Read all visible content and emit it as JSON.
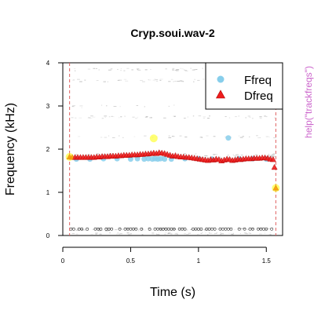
{
  "chart_data": {
    "type": "scatter",
    "title": "Cryp.soui.wav-2",
    "xlabel": "Time (s)",
    "ylabel": "Frequency (kHz)",
    "side_note": "help(\"trackfreqs\")",
    "xlim": [
      0,
      1.62
    ],
    "ylim": [
      0,
      4
    ],
    "x_ticks": [
      0,
      0.5,
      1,
      1.5
    ],
    "x_tick_labels": [
      "0",
      "0.5",
      "1",
      "1.5"
    ],
    "y_ticks": [
      0,
      1,
      2,
      3,
      4
    ],
    "y_tick_labels": [
      "0",
      "1",
      "2",
      "3",
      "4"
    ],
    "selection_bounds": [
      0.05,
      1.57
    ],
    "legend": {
      "position": "top-right",
      "entries": [
        "Ffreq",
        "Dfreq"
      ]
    },
    "colors": {
      "ffreq": "#87ceeb",
      "dfreq": "#ee1c1c",
      "dfreq_stroke": "#b00000",
      "highlight": "#ffff00",
      "bounds": "#e06060",
      "side_note": "#cc66cc",
      "spectro": "#9a9a9a"
    },
    "series": [
      {
        "name": "Ffreq",
        "marker": "circle",
        "points": [
          [
            0.1,
            1.77
          ],
          [
            0.2,
            1.77
          ],
          [
            0.3,
            1.78
          ],
          [
            0.4,
            1.78
          ],
          [
            0.5,
            1.77
          ],
          [
            0.55,
            1.78
          ],
          [
            0.6,
            1.77
          ],
          [
            0.63,
            1.78
          ],
          [
            0.66,
            1.77
          ],
          [
            0.68,
            1.78
          ],
          [
            0.7,
            1.77
          ],
          [
            0.72,
            1.78
          ],
          [
            0.75,
            1.77
          ],
          [
            0.8,
            1.77
          ],
          [
            0.9,
            1.78
          ],
          [
            1.0,
            1.78
          ],
          [
            1.1,
            1.77
          ],
          [
            1.22,
            2.26
          ],
          [
            1.3,
            1.78
          ],
          [
            1.4,
            1.78
          ],
          [
            1.5,
            1.77
          ]
        ]
      },
      {
        "name": "Dfreq",
        "marker": "triangle",
        "points": [
          [
            0.05,
            1.82
          ],
          [
            0.07,
            1.81
          ],
          [
            0.09,
            1.81
          ],
          [
            0.11,
            1.81
          ],
          [
            0.13,
            1.81
          ],
          [
            0.15,
            1.81
          ],
          [
            0.17,
            1.81
          ],
          [
            0.19,
            1.81
          ],
          [
            0.21,
            1.81
          ],
          [
            0.23,
            1.81
          ],
          [
            0.25,
            1.82
          ],
          [
            0.27,
            1.82
          ],
          [
            0.29,
            1.83
          ],
          [
            0.31,
            1.83
          ],
          [
            0.33,
            1.83
          ],
          [
            0.35,
            1.84
          ],
          [
            0.37,
            1.84
          ],
          [
            0.39,
            1.84
          ],
          [
            0.41,
            1.85
          ],
          [
            0.43,
            1.85
          ],
          [
            0.45,
            1.86
          ],
          [
            0.47,
            1.86
          ],
          [
            0.49,
            1.86
          ],
          [
            0.51,
            1.87
          ],
          [
            0.53,
            1.87
          ],
          [
            0.55,
            1.87
          ],
          [
            0.57,
            1.88
          ],
          [
            0.59,
            1.88
          ],
          [
            0.61,
            1.89
          ],
          [
            0.63,
            1.89
          ],
          [
            0.65,
            1.9
          ],
          [
            0.67,
            1.91
          ],
          [
            0.69,
            1.9
          ],
          [
            0.71,
            1.92
          ],
          [
            0.73,
            1.91
          ],
          [
            0.75,
            1.9
          ],
          [
            0.77,
            1.88
          ],
          [
            0.79,
            1.86
          ],
          [
            0.81,
            1.84
          ],
          [
            0.83,
            1.85
          ],
          [
            0.85,
            1.83
          ],
          [
            0.87,
            1.82
          ],
          [
            0.89,
            1.82
          ],
          [
            0.91,
            1.81
          ],
          [
            0.93,
            1.81
          ],
          [
            0.95,
            1.8
          ],
          [
            0.97,
            1.79
          ],
          [
            0.99,
            1.78
          ],
          [
            1.01,
            1.77
          ],
          [
            1.03,
            1.76
          ],
          [
            1.05,
            1.75
          ],
          [
            1.07,
            1.74
          ],
          [
            1.09,
            1.76
          ],
          [
            1.11,
            1.75
          ],
          [
            1.13,
            1.77
          ],
          [
            1.15,
            1.76
          ],
          [
            1.17,
            1.73
          ],
          [
            1.19,
            1.75
          ],
          [
            1.21,
            1.77
          ],
          [
            1.23,
            1.76
          ],
          [
            1.25,
            1.74
          ],
          [
            1.27,
            1.75
          ],
          [
            1.29,
            1.77
          ],
          [
            1.31,
            1.76
          ],
          [
            1.33,
            1.77
          ],
          [
            1.35,
            1.78
          ],
          [
            1.37,
            1.78
          ],
          [
            1.39,
            1.78
          ],
          [
            1.41,
            1.79
          ],
          [
            1.43,
            1.79
          ],
          [
            1.45,
            1.79
          ],
          [
            1.47,
            1.8
          ],
          [
            1.49,
            1.8
          ],
          [
            1.51,
            1.79
          ],
          [
            1.53,
            1.77
          ],
          [
            1.55,
            1.76
          ],
          [
            1.56,
            1.58
          ],
          [
            1.57,
            1.1
          ]
        ]
      }
    ],
    "highlighted_points": [
      [
        0.67,
        2.25
      ],
      [
        1.57,
        1.1
      ],
      [
        0.05,
        1.82
      ]
    ]
  }
}
